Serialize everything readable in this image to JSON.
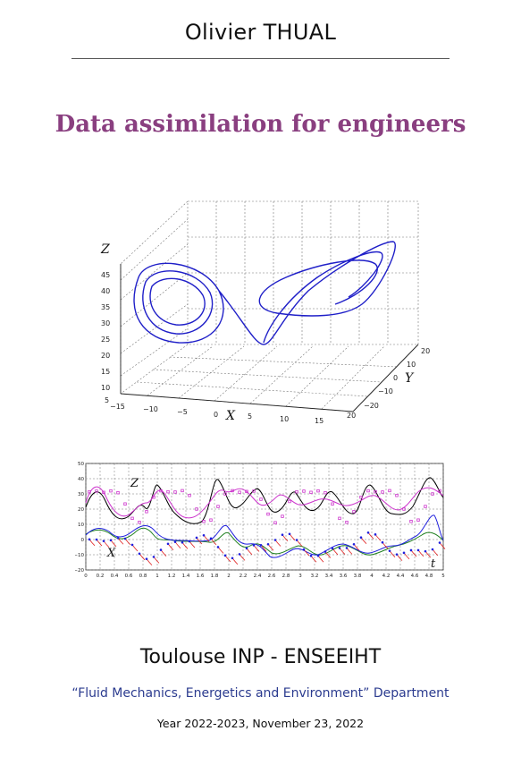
{
  "author": "Olivier THUAL",
  "title": "Data assimilation for engineers",
  "institution": "Toulouse INP - ENSEEIHT",
  "department": "“Fluid Mechanics, Energetics and Environment” Department",
  "date_line": "Year 2022-2023, November 23, 2022",
  "chart_data": [
    {
      "type": "line",
      "xlabel": "X",
      "ylabel": "Y",
      "zlabel": "Z",
      "x_ticks": [
        "−15",
        "−10",
        "−5",
        "0",
        "5",
        "10",
        "15",
        "20"
      ],
      "y_ticks": [
        "20",
        "10",
        "0",
        "−10",
        "−20"
      ],
      "z_ticks": [
        "45",
        "40",
        "35",
        "30",
        "25",
        "20",
        "15",
        "10",
        "5"
      ],
      "xlim": [
        -15,
        20
      ],
      "ylim": [
        -20,
        20
      ],
      "zlim": [
        5,
        45
      ],
      "grid": true,
      "series_color": "#1f1fc8"
    },
    {
      "type": "line",
      "xlabel": "t",
      "labels": [
        "Z",
        "X"
      ],
      "xlim": [
        0,
        5
      ],
      "ylim": [
        -20,
        50
      ],
      "x_ticks": [
        "0",
        "0.2",
        "0.4",
        "0.6",
        "0.8",
        "1",
        "1.2",
        "1.4",
        "1.6",
        "1.8",
        "2",
        "2.2",
        "2.4",
        "2.6",
        "2.8",
        "3",
        "3.2",
        "3.4",
        "3.6",
        "3.8",
        "4",
        "4.2",
        "4.4",
        "4.6",
        "4.8",
        "5"
      ],
      "y_ticks": [
        "50",
        "40",
        "30",
        "20",
        "10",
        "0",
        "−10",
        "−20"
      ],
      "grid": true,
      "series_colors": {
        "z_true": "#000000",
        "z_est": "#cc33cc",
        "x_true": "#208020",
        "x_est": "#1f1fdd",
        "forecast": "#e02020"
      }
    }
  ]
}
